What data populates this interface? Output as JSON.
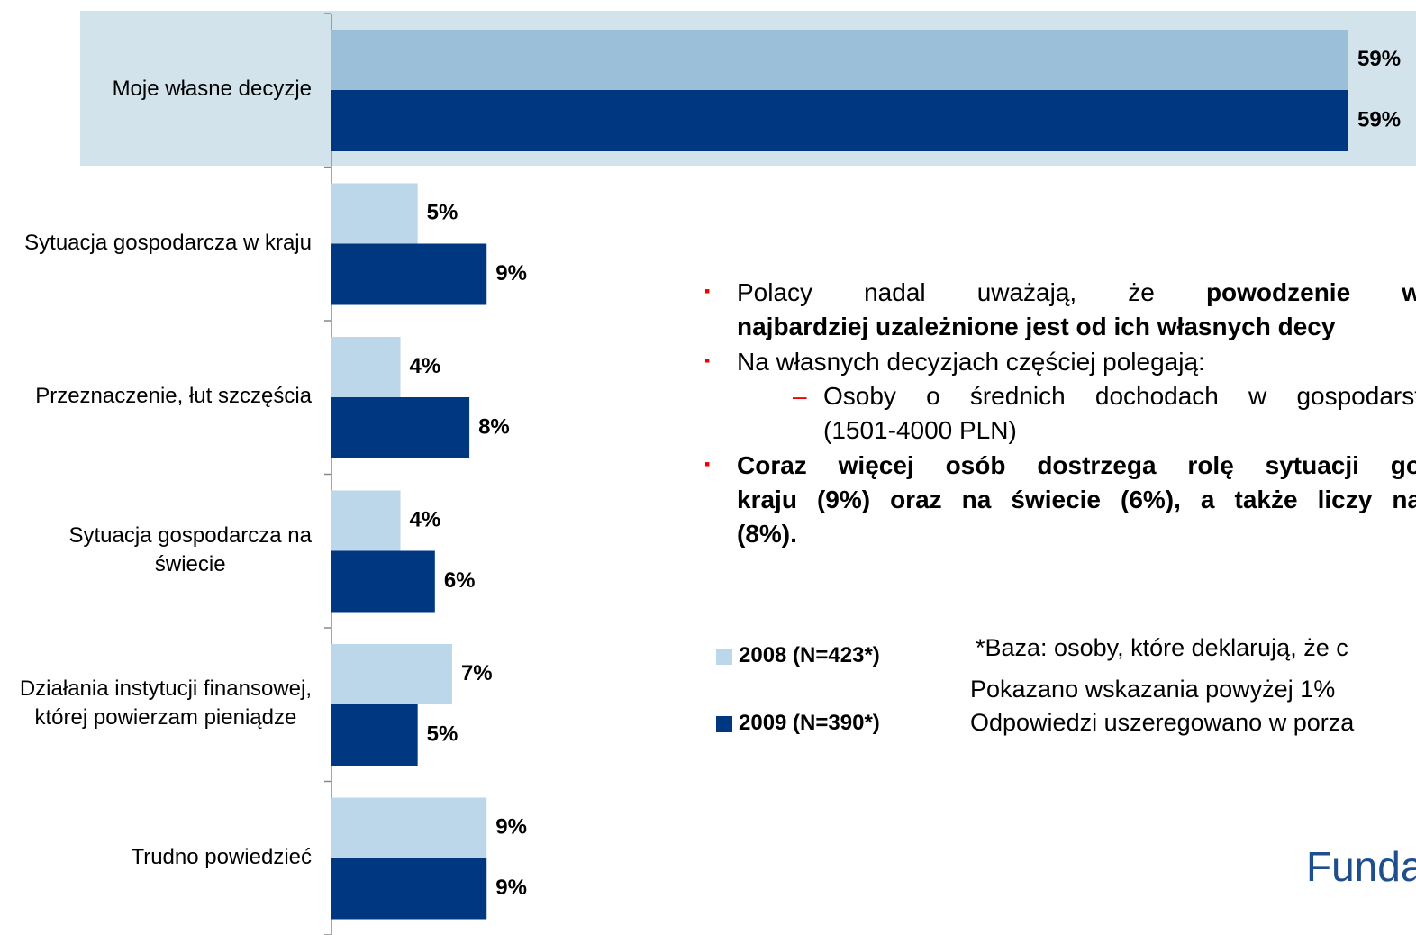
{
  "chart_data": {
    "type": "barh",
    "categories": [
      "Moje własne decyzje",
      "Sytuacja gospodarcza w kraju",
      "Przeznaczenie, łut szczęścia",
      "Sytuacja gospodarcza na\nświecie",
      "Działania instytucji finansowej,\nktórej powierzam pieniądze",
      "Trudno powiedzieć"
    ],
    "series": [
      {
        "name": "2008 (N=423*)",
        "color": "#bdd7ea",
        "values": [
          59,
          5,
          4,
          4,
          7,
          9
        ],
        "value_labels": [
          "59%",
          "5%",
          "4%",
          "4%",
          "7%",
          "9%"
        ]
      },
      {
        "name": "2009 (N=390*)",
        "color": "#003781",
        "values": [
          59,
          9,
          8,
          6,
          5,
          9
        ],
        "value_labels": [
          "59%",
          "9%",
          "8%",
          "6%",
          "5%",
          "9%"
        ]
      }
    ],
    "highlight_index": 0,
    "highlight_color": "#d3e3ec",
    "highlight_bar_color": "#9bbfd8"
  },
  "text": {
    "lines": [
      {
        "bullet": "main",
        "justify": true,
        "segments": [
          {
            "text": "Polacy nadal uważają, że ",
            "bold": false
          },
          {
            "text": "powodzenie w",
            "bold": true
          }
        ]
      },
      {
        "bullet": null,
        "justify": false,
        "segments": [
          {
            "text": "najbardziej uzależnione jest od ich własnych decy",
            "bold": true
          }
        ]
      },
      {
        "bullet": "main",
        "justify": false,
        "segments": [
          {
            "text": "Na własnych decyzjach częściej polegają:",
            "bold": false
          }
        ]
      },
      {
        "bullet": "sub",
        "justify": true,
        "segments": [
          {
            "text": "Osoby o średnich dochodach w gospodarst",
            "bold": false
          }
        ]
      },
      {
        "bullet": null,
        "sub": true,
        "justify": false,
        "segments": [
          {
            "text": "(1501-4000 PLN)",
            "bold": false
          }
        ]
      },
      {
        "bullet": "main",
        "justify": true,
        "segments": [
          {
            "text": "Coraz więcej osób dostrzega rolę  sytuacji go",
            "bold": true
          }
        ]
      },
      {
        "bullet": null,
        "justify": true,
        "segments": [
          {
            "text": "kraju (9%) oraz na świecie (6%), a także liczy na",
            "bold": true
          }
        ]
      },
      {
        "bullet": null,
        "justify": false,
        "segments": [
          {
            "text": "(8%).",
            "bold": true
          }
        ]
      }
    ],
    "notes": [
      "*Baza: osoby, które deklarują, że c",
      "Pokazano wskazania powyżej 1%",
      "Odpowiedzi uszeregowano w porza"
    ],
    "logo": "Funda"
  }
}
